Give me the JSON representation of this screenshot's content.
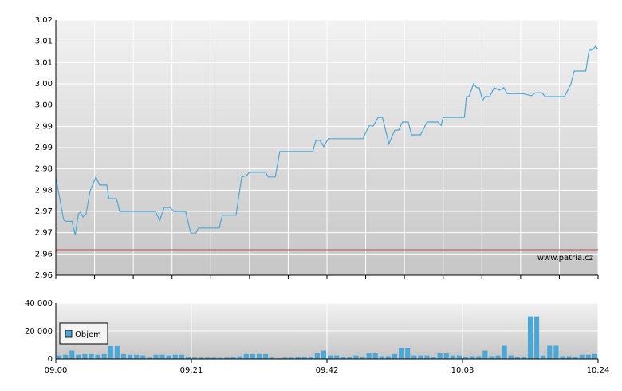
{
  "chart_data": [
    {
      "type": "line",
      "color": "#4aa8d8",
      "x": [
        0,
        1.2,
        1.5,
        2.5,
        3,
        3.5,
        3.8,
        4.2,
        4.7,
        5.3,
        6.2,
        6.8,
        7.9,
        8.2,
        9.4,
        9.9,
        15.4,
        16.1,
        16.8,
        17.7,
        18.3,
        20.1,
        20.9,
        21.7,
        22.1,
        25.3,
        25.8,
        27.9,
        28.8,
        29.5,
        30,
        32.5,
        32.9,
        34,
        34.7,
        39.8,
        40.3,
        40.9,
        41.5,
        42.2,
        47.6,
        48.5,
        49.2,
        49.9,
        50.6,
        51.6,
        52.5,
        53.1,
        53.7,
        54.6,
        55.1,
        56.5,
        57.5,
        59.2,
        59.7,
        60,
        63.3,
        63.6,
        64,
        64.7,
        65.2,
        65.6,
        66.1,
        66.5,
        67.2,
        67.9,
        68.7,
        69.4,
        69.9,
        72.3,
        72.9,
        73.7,
        74.3,
        75.3,
        75.8,
        78.8,
        79.8,
        80.3,
        82.1,
        82.6,
        83.1,
        83.6,
        84
      ],
      "values": [
        2.9831,
        2.9731,
        2.9727,
        2.9727,
        2.9694,
        2.9744,
        2.9748,
        2.9737,
        2.9744,
        2.9797,
        2.9831,
        2.9812,
        2.9812,
        2.978,
        2.978,
        2.975,
        2.975,
        2.9729,
        2.9759,
        2.9759,
        2.975,
        2.975,
        2.9699,
        2.9699,
        2.9711,
        2.9711,
        2.9741,
        2.9741,
        2.9831,
        2.9834,
        2.9842,
        2.9842,
        2.9831,
        2.9831,
        2.9891,
        2.9891,
        2.9917,
        2.9917,
        2.9902,
        2.9921,
        2.9921,
        2.9951,
        2.9951,
        2.9971,
        2.9971,
        2.9909,
        2.9941,
        2.9941,
        2.996,
        2.996,
        2.993,
        2.993,
        2.996,
        2.996,
        2.9952,
        2.9971,
        2.9971,
        3.002,
        3.002,
        3.005,
        3.0041,
        3.0041,
        3.0011,
        3.002,
        3.002,
        3.0041,
        3.0035,
        3.0041,
        3.0027,
        3.0027,
        3.0025,
        3.0022,
        3.0029,
        3.0029,
        3.002,
        3.002,
        3.005,
        3.008,
        3.008,
        3.0129,
        3.0129,
        3.0138,
        3.0131
      ],
      "xlim": [
        0,
        84
      ],
      "xticks": [
        0,
        6,
        12,
        18,
        24,
        30,
        36,
        42,
        48,
        54,
        60,
        66,
        72,
        78,
        84
      ],
      "ylim": [
        2.96,
        3.02
      ],
      "yticks": [
        {
          "value": 2.96,
          "label": "2,96"
        },
        {
          "value": 2.965,
          "label": "2,96"
        },
        {
          "value": 2.97,
          "label": "2,97"
        },
        {
          "value": 2.975,
          "label": "2,97"
        },
        {
          "value": 2.98,
          "label": "2,98"
        },
        {
          "value": 2.985,
          "label": "2,98"
        },
        {
          "value": 2.99,
          "label": "2,99"
        },
        {
          "value": 2.995,
          "label": "2,99"
        },
        {
          "value": 3.0,
          "label": "3,00"
        },
        {
          "value": 3.005,
          "label": "3,00"
        },
        {
          "value": 3.01,
          "label": "3,01"
        },
        {
          "value": 3.015,
          "label": "3,01"
        },
        {
          "value": 3.02,
          "label": "3,02"
        }
      ],
      "reference_line": 2.966,
      "reference_color": "#d04040",
      "watermark": "www.patria.cz",
      "grid": true
    },
    {
      "type": "bar",
      "x": [
        0,
        1,
        2,
        3,
        4,
        5,
        6,
        7,
        8,
        9,
        10,
        11,
        12,
        13,
        14,
        15,
        16,
        17,
        18,
        19,
        20,
        21,
        22,
        23,
        24,
        25,
        26,
        27,
        28,
        29,
        30,
        31,
        32,
        33,
        34,
        35,
        36,
        37,
        38,
        39,
        40,
        41,
        42,
        43,
        44,
        45,
        46,
        47,
        48,
        49,
        50,
        51,
        52,
        53,
        54,
        55,
        56,
        57,
        58,
        59,
        60,
        61,
        62,
        63,
        64,
        65,
        66,
        67,
        68,
        69,
        70,
        71,
        72,
        73,
        74,
        75,
        76,
        77,
        78,
        79,
        80,
        81,
        82,
        83
      ],
      "series": [
        {
          "name": "Objem",
          "color": "#4aa8d8",
          "values": [
            2500,
            3000,
            6000,
            3000,
            3500,
            3500,
            3000,
            3500,
            9500,
            9500,
            3500,
            3000,
            3000,
            2500,
            1000,
            3000,
            3000,
            2500,
            3000,
            3000,
            1500,
            1000,
            1000,
            1000,
            1000,
            800,
            1000,
            1500,
            2000,
            3500,
            3500,
            3500,
            3500,
            1000,
            500,
            1000,
            1000,
            1500,
            1500,
            1500,
            4000,
            6000,
            2500,
            2500,
            1500,
            1500,
            2500,
            1500,
            4500,
            4000,
            2000,
            2000,
            3500,
            8000,
            8000,
            2500,
            2500,
            2500,
            1500,
            4000,
            4000,
            2500,
            2500,
            1500,
            2000,
            2000,
            6000,
            2000,
            2500,
            10000,
            2500,
            1500,
            1500,
            30500,
            30500,
            2500,
            10000,
            10000,
            2000,
            2000,
            1500,
            3000,
            3000,
            3500
          ]
        }
      ],
      "xlim": [
        0,
        84
      ],
      "xticks": [
        {
          "value": 0,
          "label": "09:00"
        },
        {
          "value": 21,
          "label": "09:21"
        },
        {
          "value": 42,
          "label": "09:42"
        },
        {
          "value": 63,
          "label": "10:03"
        },
        {
          "value": 84,
          "label": "10:24"
        }
      ],
      "ylim": [
        0,
        40000
      ],
      "yticks": [
        {
          "value": 0,
          "label": "0"
        },
        {
          "value": 20000,
          "label": "20 000"
        },
        {
          "value": 40000,
          "label": "40 000"
        }
      ],
      "grid": true
    }
  ]
}
